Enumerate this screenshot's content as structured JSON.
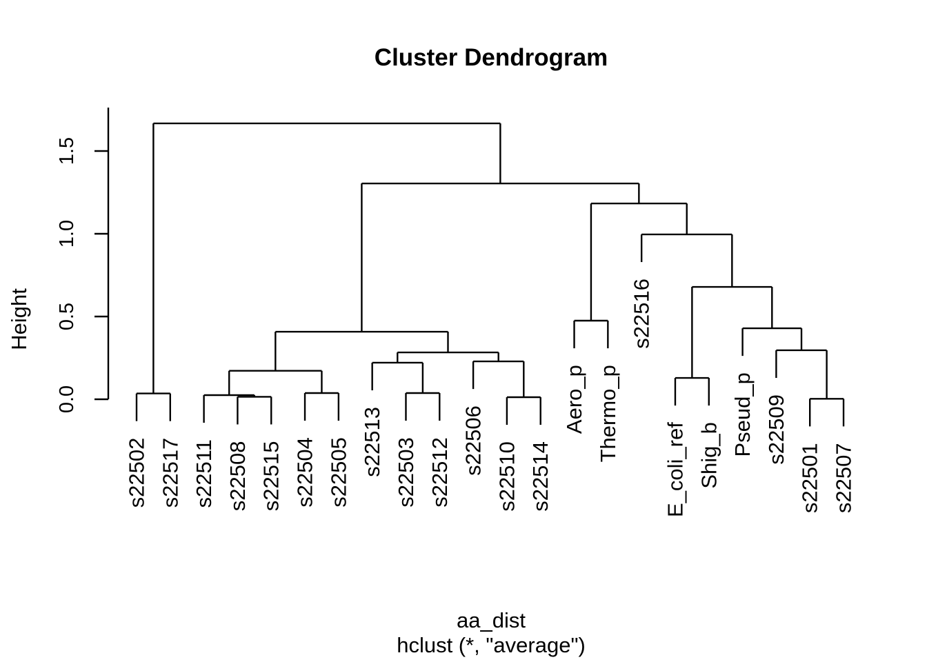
{
  "page": {
    "background": "#ffffff",
    "line_color": "#000000",
    "text_color": "#000000"
  },
  "chart_data": {
    "type": "dendrogram",
    "title": "Cluster Dendrogram",
    "ylabel": "Height",
    "caption_line1": "aa_dist",
    "caption_line2": "hclust (*, \"average\")",
    "y_axis": {
      "tick_values": [
        0,
        0.5,
        1.0,
        1.5
      ],
      "tick_labels": [
        "0.0",
        "0.5",
        "1.0",
        "1.5"
      ],
      "range": [
        0,
        1.76
      ],
      "grid": false
    },
    "hang": 0.167,
    "leaves": [
      "s22502",
      "s22517",
      "s22511",
      "s22508",
      "s22515",
      "s22504",
      "s22505",
      "s22513",
      "s22503",
      "s22512",
      "s22506",
      "s22510",
      "s22514",
      "Aero_p",
      "Thermo_p",
      "s22516",
      "E_coli_ref",
      "Shig_b",
      "Pseud_p",
      "s22509",
      "s22501",
      "s22507"
    ],
    "merges": [
      {
        "id": "m1",
        "a": "s22508",
        "b": "s22515",
        "height": 0.015
      },
      {
        "id": "m2",
        "a": "s22511",
        "b": "m1",
        "height": 0.025
      },
      {
        "id": "m3",
        "a": "s22502",
        "b": "s22517",
        "height": 0.035
      },
      {
        "id": "m4",
        "a": "s22504",
        "b": "s22505",
        "height": 0.0375
      },
      {
        "id": "m5",
        "a": "m2",
        "b": "m4",
        "height": 0.172
      },
      {
        "id": "m6",
        "a": "s22503",
        "b": "s22512",
        "height": 0.0375
      },
      {
        "id": "m7",
        "a": "s22513",
        "b": "m6",
        "height": 0.221
      },
      {
        "id": "m8",
        "a": "s22510",
        "b": "s22514",
        "height": 0.0125
      },
      {
        "id": "m9",
        "a": "s22506",
        "b": "m8",
        "height": 0.229
      },
      {
        "id": "m10",
        "a": "m7",
        "b": "m9",
        "height": 0.283
      },
      {
        "id": "m11",
        "a": "m5",
        "b": "m10",
        "height": 0.408
      },
      {
        "id": "m12",
        "a": "Aero_p",
        "b": "Thermo_p",
        "height": 0.475
      },
      {
        "id": "m13",
        "a": "E_coli_ref",
        "b": "Shig_b",
        "height": 0.129
      },
      {
        "id": "m14",
        "a": "s22501",
        "b": "s22507",
        "height": 0.003
      },
      {
        "id": "m15",
        "a": "s22509",
        "b": "m14",
        "height": 0.296
      },
      {
        "id": "m16",
        "a": "Pseud_p",
        "b": "m15",
        "height": 0.429
      },
      {
        "id": "m17",
        "a": "m13",
        "b": "m16",
        "height": 0.679
      },
      {
        "id": "m18",
        "a": "s22516",
        "b": "m17",
        "height": 0.996
      },
      {
        "id": "m19",
        "a": "m12",
        "b": "m18",
        "height": 1.183
      },
      {
        "id": "m20",
        "a": "m11",
        "b": "m19",
        "height": 1.304
      },
      {
        "id": "m21",
        "a": "m3",
        "b": "m20",
        "height": 1.667
      }
    ]
  }
}
